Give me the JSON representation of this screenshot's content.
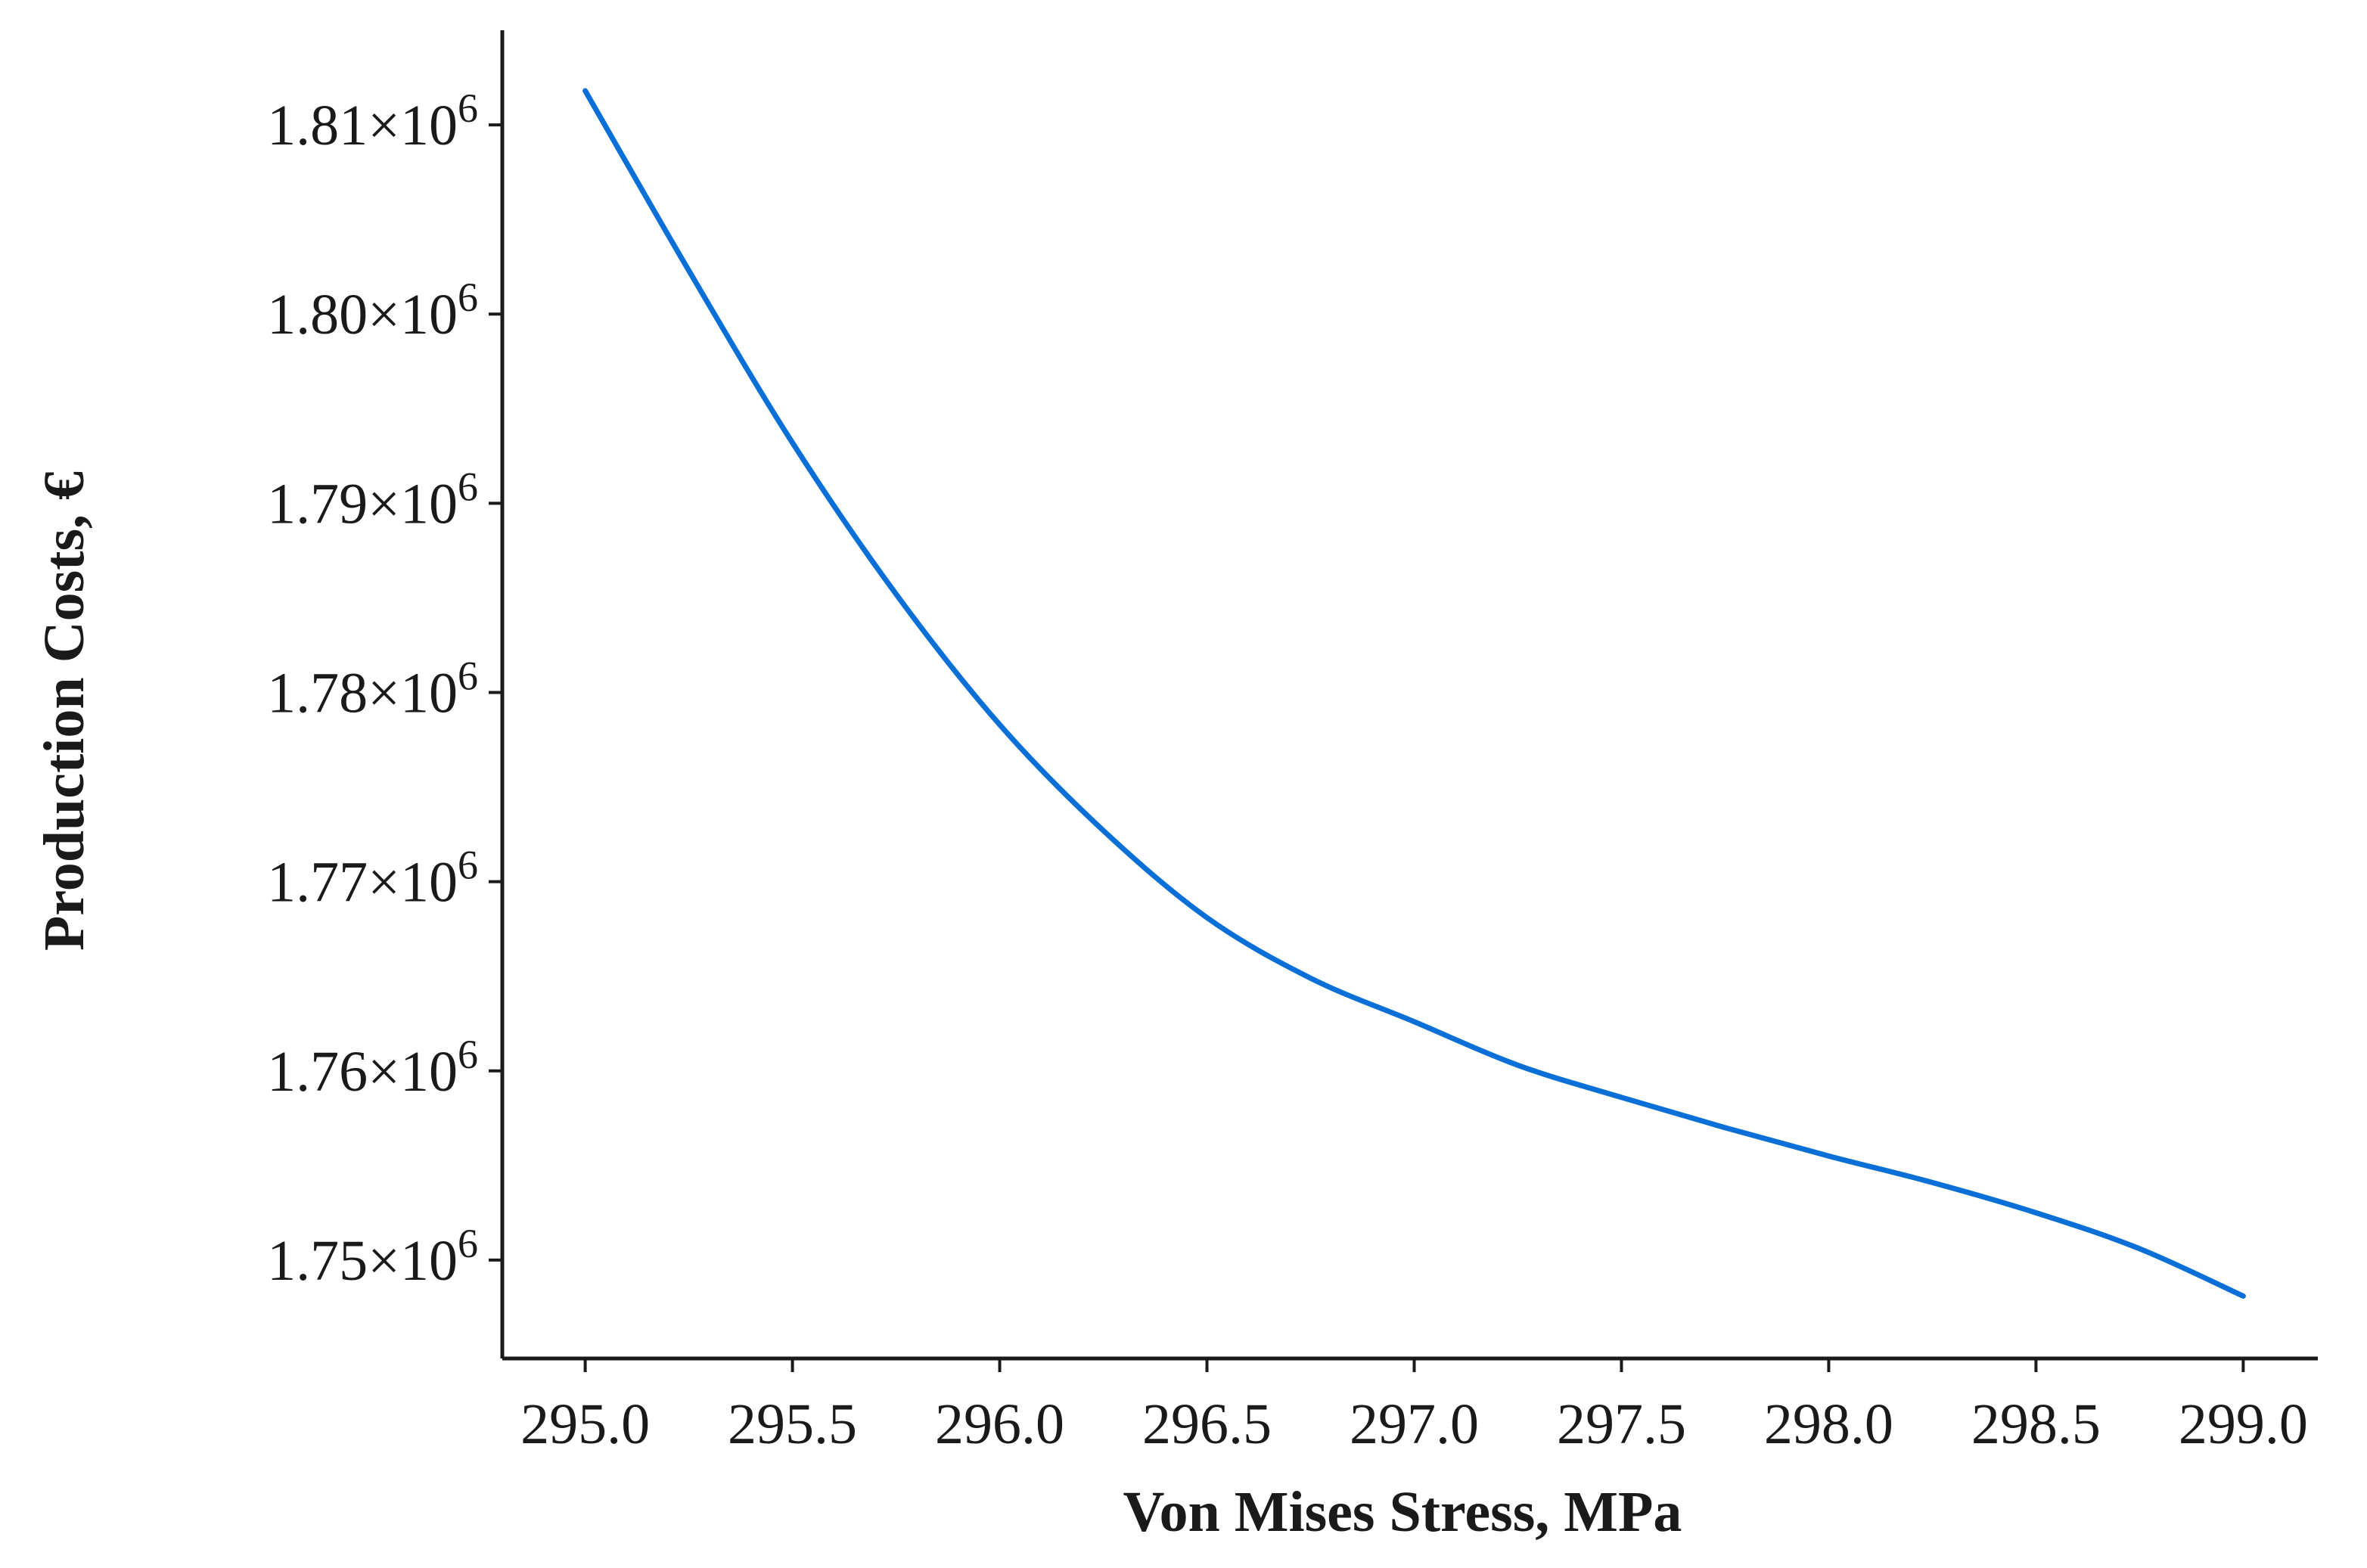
{
  "chart_data": {
    "type": "line",
    "title": "",
    "xlabel": "Von Mises Stress, MPa",
    "ylabel": "Production Costs, €",
    "xlim": [
      294.8,
      299.18
    ],
    "ylim": [
      1744800,
      1815000
    ],
    "x_ticks": [
      295.0,
      295.5,
      296.0,
      296.5,
      297.0,
      297.5,
      298.0,
      298.5,
      299.0
    ],
    "x_tick_labels": [
      "295.0",
      "295.5",
      "296.0",
      "296.5",
      "297.0",
      "297.5",
      "298.0",
      "298.5",
      "299.0"
    ],
    "y_ticks": [
      1750000,
      1760000,
      1770000,
      1780000,
      1790000,
      1800000,
      1810000
    ],
    "y_tick_labels": [
      {
        "mantissa": "1.75×10",
        "exp": "6"
      },
      {
        "mantissa": "1.76×10",
        "exp": "6"
      },
      {
        "mantissa": "1.77×10",
        "exp": "6"
      },
      {
        "mantissa": "1.78×10",
        "exp": "6"
      },
      {
        "mantissa": "1.79×10",
        "exp": "6"
      },
      {
        "mantissa": "1.80×10",
        "exp": "6"
      },
      {
        "mantissa": "1.81×10",
        "exp": "6"
      }
    ],
    "grid": false,
    "legend": "none",
    "series": [
      {
        "color": "#0a6fd6",
        "x": [
          295.0,
          295.25,
          295.5,
          295.75,
          296.0,
          296.25,
          296.5,
          296.75,
          297.0,
          297.25,
          297.5,
          297.75,
          298.0,
          298.25,
          298.5,
          298.75,
          299.0
        ],
        "y": [
          1811800,
          1802300,
          1793200,
          1785200,
          1778300,
          1772700,
          1768100,
          1764900,
          1762600,
          1760300,
          1758600,
          1757000,
          1755500,
          1754100,
          1752500,
          1750600,
          1748100
        ]
      }
    ]
  }
}
